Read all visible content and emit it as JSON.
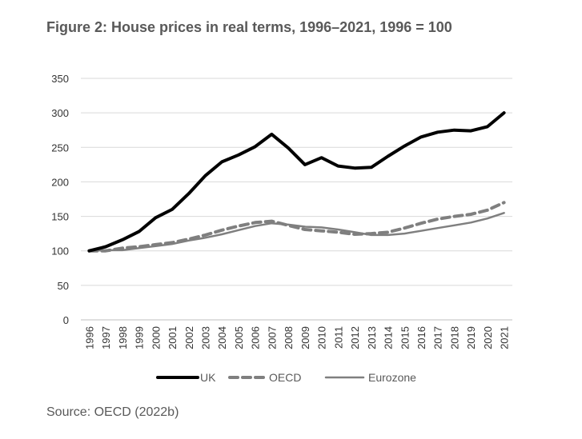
{
  "title": "Figure 2: House prices in real terms, 1996–2021, 1996 = 100",
  "source": "Source: OECD (2022b)",
  "chart_data": {
    "type": "line",
    "x": [
      "1996",
      "1997",
      "1998",
      "1999",
      "2000",
      "2001",
      "2002",
      "2003",
      "2004",
      "2005",
      "2006",
      "2007",
      "2008",
      "2009",
      "2010",
      "2011",
      "2012",
      "2013",
      "2014",
      "2015",
      "2016",
      "2017",
      "2018",
      "2019",
      "2020",
      "2021"
    ],
    "series": [
      {
        "name": "UK",
        "color": "#000000",
        "style": "solid",
        "values": [
          100,
          106,
          116,
          128,
          148,
          160,
          183,
          209,
          229,
          239,
          251,
          269,
          249,
          225,
          235,
          223,
          220,
          221,
          237,
          252,
          265,
          272,
          275,
          274,
          280,
          300
        ]
      },
      {
        "name": "OECD",
        "color": "#7f7f7f",
        "style": "dashed",
        "values": [
          100,
          100,
          104,
          106,
          109,
          112,
          117,
          123,
          130,
          136,
          141,
          143,
          137,
          131,
          129,
          127,
          124,
          125,
          127,
          133,
          140,
          146,
          150,
          153,
          159,
          170
        ]
      },
      {
        "name": "Eurozone",
        "color": "#7f7f7f",
        "style": "solid",
        "values": [
          100,
          101,
          101,
          104,
          107,
          110,
          115,
          119,
          124,
          130,
          136,
          140,
          138,
          135,
          134,
          131,
          127,
          123,
          123,
          125,
          129,
          133,
          137,
          141,
          147,
          155
        ]
      }
    ],
    "yticks": [
      0,
      50,
      100,
      150,
      200,
      250,
      300,
      350
    ],
    "ylim": [
      0,
      350
    ],
    "grid": true,
    "legend": "bottom"
  }
}
